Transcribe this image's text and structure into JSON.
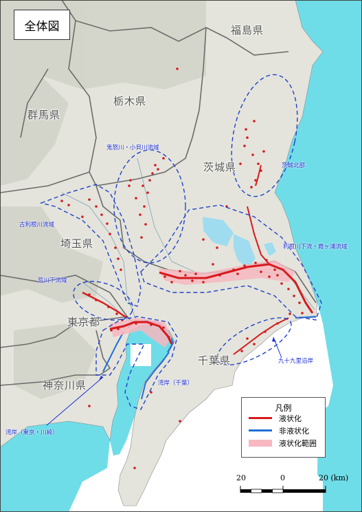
{
  "title": "全体図",
  "prefectures": {
    "fukushima": "福島県",
    "tochigi": "栃木県",
    "gunma": "群馬県",
    "ibaraki": "茨城県",
    "saitama": "埼玉県",
    "tokyo": "東京都",
    "chiba": "千葉県",
    "kanagawa": "神奈川県"
  },
  "areas": {
    "kinugawa": "鬼怒川・小貝川流域",
    "ibaraki_north": "茨城北部",
    "furutone": "古利根川流域",
    "tone_lower": "利根川下流・霞ヶ浦流域",
    "arakawa": "荒川下流域",
    "kujukuri": "九十九里沿岸",
    "bay_chiba": "湾岸（千葉）",
    "bay_tokyo": "湾岸（東京・川崎）"
  },
  "legend": {
    "title": "凡例",
    "items": [
      {
        "label": "液状化",
        "color": "#d7191c"
      },
      {
        "label": "非液状化",
        "color": "#1f6fd6"
      },
      {
        "label": "液状化範囲",
        "color": "#f7b8c0"
      }
    ]
  },
  "scale": {
    "left": "20",
    "center": "0",
    "right": "20 (km)"
  },
  "colors": {
    "land": "#e4e4dc",
    "sea": "#6fdde8",
    "boundary": "#6b6b6b",
    "dashed_outline": "#2040c8",
    "lake": "#9fdcef"
  }
}
